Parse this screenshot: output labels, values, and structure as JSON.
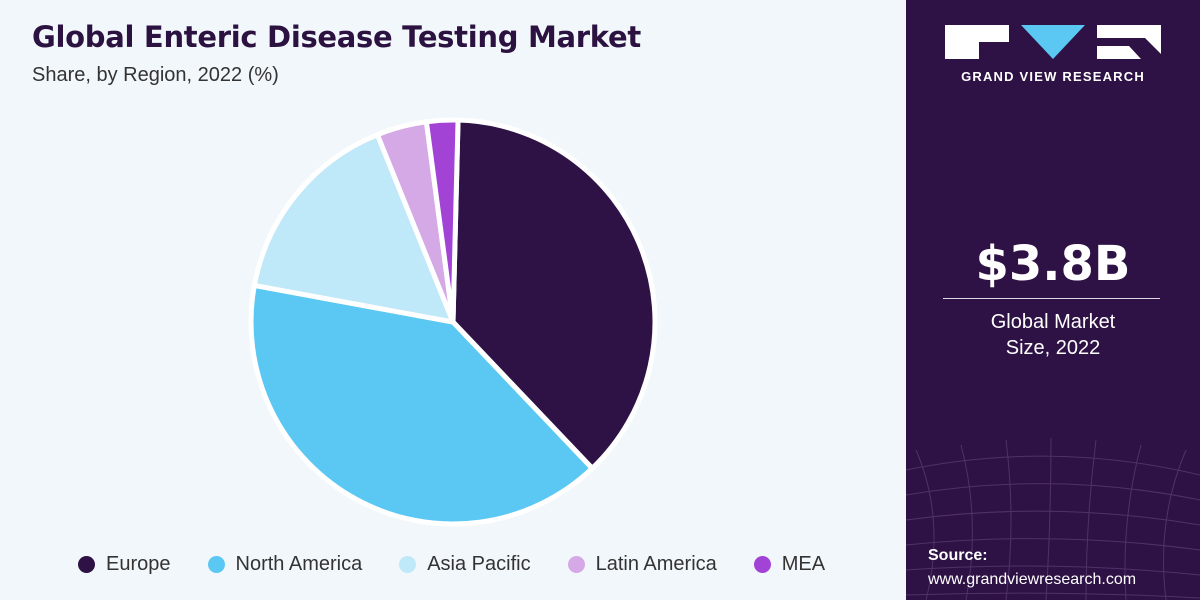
{
  "header": {
    "title": "Global Enteric Disease Testing Market",
    "subtitle": "Share, by Region, 2022 (%)"
  },
  "chart_data": {
    "type": "pie",
    "title": "Global Enteric Disease Testing Market",
    "subtitle": "Share, by Region, 2022 (%)",
    "categories": [
      "Europe",
      "North America",
      "Asia Pacific",
      "Latin America",
      "MEA"
    ],
    "values": [
      37.5,
      40.0,
      16.0,
      4.0,
      2.5
    ],
    "colors": [
      "#2e1245",
      "#5bc8f4",
      "#bfe8f9",
      "#d5a8e6",
      "#a243d6"
    ],
    "legend_position": "bottom"
  },
  "legend": {
    "items": [
      {
        "label": "Europe",
        "color": "#2e1245"
      },
      {
        "label": "North America",
        "color": "#5bc8f4"
      },
      {
        "label": "Asia Pacific",
        "color": "#bfe8f9"
      },
      {
        "label": "Latin America",
        "color": "#d5a8e6"
      },
      {
        "label": "MEA",
        "color": "#a243d6"
      }
    ]
  },
  "sidebar": {
    "brand": "GRAND VIEW RESEARCH",
    "logo_icon": "gvr-logo-icon",
    "market_size": "$3.8B",
    "market_size_label": "Global Market Size, 2022",
    "source_label": "Source:",
    "source_url": "www.grandviewresearch.com",
    "background_color": "#2e1245"
  }
}
